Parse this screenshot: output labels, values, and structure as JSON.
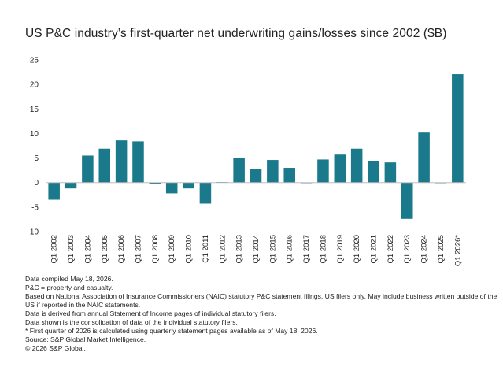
{
  "chart_data": {
    "type": "bar",
    "title": "US P&C industry’s first-quarter net underwriting gains/losses since 2002 ($B)",
    "categories": [
      "Q1 2002",
      "Q1 2003",
      "Q1 2004",
      "Q1 2005",
      "Q1 2006",
      "Q1 2007",
      "Q1 2008",
      "Q1 2009",
      "Q1 2010",
      "Q1 2011",
      "Q1 2012",
      "Q1 2013",
      "Q1 2014",
      "Q1 2015",
      "Q1 2016",
      "Q1 2017",
      "Q1 2018",
      "Q1 2019",
      "Q1 2020",
      "Q1 2021",
      "Q1 2022",
      "Q1 2023",
      "Q1 2024",
      "Q1 2025",
      "Q1 2026*"
    ],
    "values": [
      -3.5,
      -1.2,
      5.5,
      6.9,
      8.6,
      8.4,
      -0.3,
      -2.2,
      -1.2,
      -4.3,
      0.1,
      5.0,
      2.8,
      4.6,
      3.0,
      -0.1,
      4.7,
      5.7,
      6.9,
      4.3,
      4.1,
      -7.4,
      10.2,
      -0.1,
      22.1
    ],
    "yticks": [
      25,
      20,
      15,
      10,
      5,
      0,
      -5,
      -10
    ],
    "ylim": [
      -10,
      25
    ],
    "xlabel": "",
    "ylabel": "",
    "grid": false,
    "bar_color": "#1a7a8c"
  },
  "notes": [
    "Data compiled May 18, 2026.",
    "P&C = property and casualty.",
    "Based on National Association of Insurance Commissioners (NAIC) statutory P&C statement filings. US filers only. May include business written outside of the US if reported in the NAIC statements.",
    "Data is derived from annual Statement of Income pages of individual statutory filers.",
    "Data shown is the consolidation of data of the individual statutory filers.",
    "* First quarter of 2026 is calculated using quarterly statement pages available as of May 18, 2026.",
    "Source: S&P Global Market Intelligence.",
    "© 2026 S&P Global."
  ]
}
